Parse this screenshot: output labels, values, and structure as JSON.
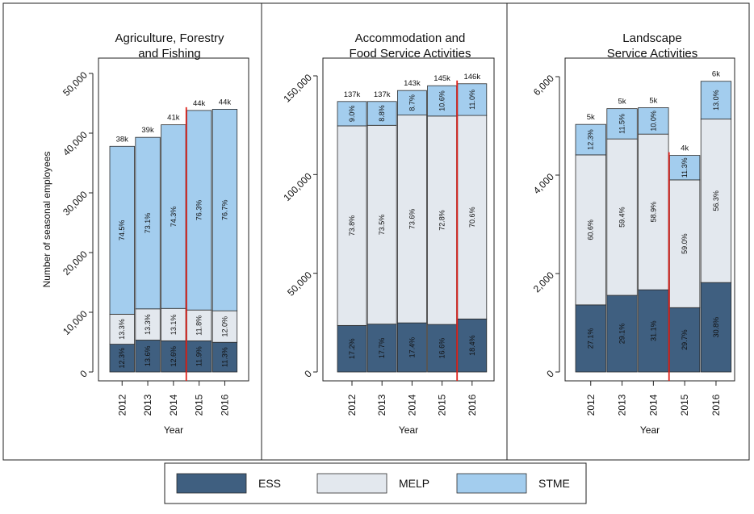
{
  "colors": {
    "ESS": "#3f5f80",
    "MELP": "#e3e8ee",
    "STME": "#a3cdee",
    "divider": "#e0231d",
    "frame": "#222222"
  },
  "years": [
    "2012",
    "2013",
    "2014",
    "2015",
    "2016"
  ],
  "ylabel": "Number of seasonal employees",
  "xlabel": "Year",
  "legend": [
    {
      "key": "ESS",
      "label": "ESS"
    },
    {
      "key": "MELP",
      "label": "MELP"
    },
    {
      "key": "STME",
      "label": "STME"
    }
  ],
  "chart_data": [
    {
      "type": "bar",
      "stacked": true,
      "title": "Agriculture, Forestry and Fishing",
      "title_lines": [
        "Agriculture, Forestry",
        "and Fishing"
      ],
      "categories": [
        "2012",
        "2013",
        "2014",
        "2015",
        "2016"
      ],
      "ylim": [
        0,
        50000
      ],
      "yticks": [
        0,
        10000,
        20000,
        30000,
        40000,
        50000
      ],
      "ytick_labels": [
        "0",
        "10,000",
        "20,000",
        "30,000",
        "40,000",
        "50,000"
      ],
      "totals": [
        37800,
        39300,
        41400,
        43800,
        44000
      ],
      "total_labels": [
        "38k",
        "39k",
        "41k",
        "44k",
        "44k"
      ],
      "series": [
        {
          "name": "ESS",
          "values": [
            4650,
            5340,
            5220,
            5210,
            4970
          ],
          "labels": [
            "12.3%",
            "13.6%",
            "12.6%",
            "11.9%",
            "11.3%"
          ]
        },
        {
          "name": "MELP",
          "values": [
            5030,
            5230,
            5420,
            5170,
            5280
          ],
          "labels": [
            "13.3%",
            "13.3%",
            "13.1%",
            "11.8%",
            "12.0%"
          ]
        },
        {
          "name": "STME",
          "values": [
            28120,
            28730,
            30760,
            33420,
            33750
          ],
          "labels": [
            "74.5%",
            "73.1%",
            "74.3%",
            "76.3%",
            "76.7%"
          ]
        }
      ],
      "break_after_index": 2
    },
    {
      "type": "bar",
      "stacked": true,
      "title": "Accommodation and Food Service Activities",
      "title_lines": [
        "Accommodation and",
        "Food Service Activities"
      ],
      "categories": [
        "2012",
        "2013",
        "2014",
        "2015",
        "2016"
      ],
      "ylim": [
        0,
        150000
      ],
      "yticks": [
        0,
        50000,
        100000,
        150000
      ],
      "ytick_labels": [
        "0",
        "50,000",
        "100,000",
        "150,000"
      ],
      "totals": [
        137000,
        137000,
        143000,
        145000,
        146000
      ],
      "total_labels": [
        "137k",
        "137k",
        "143k",
        "145k",
        "146k"
      ],
      "series": [
        {
          "name": "ESS",
          "values": [
            23560,
            24250,
            24880,
            24070,
            26860
          ],
          "labels": [
            "17.2%",
            "17.7%",
            "17.4%",
            "16.6%",
            "18.4%"
          ]
        },
        {
          "name": "MELP",
          "values": [
            101110,
            100700,
            105250,
            105560,
            103080
          ],
          "labels": [
            "73.8%",
            "73.5%",
            "73.6%",
            "72.8%",
            "70.6%"
          ]
        },
        {
          "name": "STME",
          "values": [
            12330,
            12060,
            12440,
            15370,
            16060
          ],
          "labels": [
            "9.0%",
            "8.8%",
            "8.7%",
            "10.6%",
            "11.0%"
          ]
        }
      ],
      "break_after_index": 3
    },
    {
      "type": "bar",
      "stacked": true,
      "title": "Landscape Service Activities",
      "title_lines": [
        "Landscape",
        "Service Activities"
      ],
      "categories": [
        "2012",
        "2013",
        "2014",
        "2015",
        "2016"
      ],
      "ylim": [
        0,
        6000
      ],
      "yticks": [
        0,
        2000,
        4000,
        6000
      ],
      "ytick_labels": [
        "0",
        "2,000",
        "4,000",
        "6,000"
      ],
      "totals": [
        5030,
        5350,
        5370,
        4400,
        5900
      ],
      "total_labels": [
        "5k",
        "5k",
        "5k",
        "4k",
        "6k"
      ],
      "series": [
        {
          "name": "ESS",
          "values": [
            1363,
            1557,
            1670,
            1307,
            1817
          ],
          "labels": [
            "27.1%",
            "29.1%",
            "31.1%",
            "29.7%",
            "30.8%"
          ]
        },
        {
          "name": "MELP",
          "values": [
            3048,
            3178,
            3163,
            2596,
            3322
          ],
          "labels": [
            "60.6%",
            "59.4%",
            "58.9%",
            "59.0%",
            "56.3%"
          ]
        },
        {
          "name": "STME",
          "values": [
            619,
            615,
            537,
            497,
            767
          ],
          "labels": [
            "12.3%",
            "11.5%",
            "10.0%",
            "11.3%",
            "13.0%"
          ]
        }
      ],
      "break_after_index": 2
    }
  ]
}
